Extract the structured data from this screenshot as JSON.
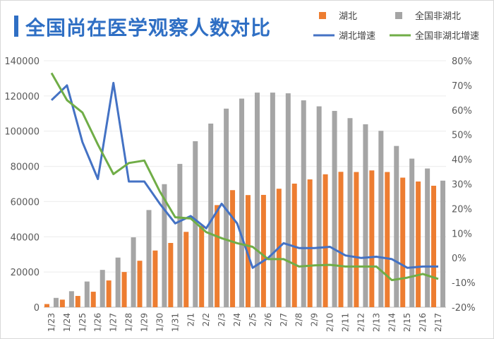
{
  "chart_data": {
    "type": "bar+line",
    "title": "全国尚在医学观察人数对比",
    "categories": [
      "1/23",
      "1/24",
      "1/25",
      "1/26",
      "1/27",
      "1/28",
      "1/29",
      "1/30",
      "1/31",
      "2/1",
      "2/2",
      "2/3",
      "2/4",
      "2/5",
      "2/6",
      "2/7",
      "2/8",
      "2/9",
      "2/10",
      "2/11",
      "2/12",
      "2/13",
      "2/14",
      "2/15",
      "2/16",
      "2/17"
    ],
    "left_axis": {
      "ylim": [
        0,
        140000
      ],
      "ticks": [
        "0",
        "20000",
        "40000",
        "60000",
        "80000",
        "100000",
        "120000",
        "140000"
      ]
    },
    "right_axis": {
      "ylim": [
        -20,
        80
      ],
      "ticks": [
        "-20%",
        "-10%",
        "0%",
        "10%",
        "20%",
        "30%",
        "40%",
        "50%",
        "60%",
        "70%",
        "80%"
      ]
    },
    "series": [
      {
        "name": "湖北",
        "type": "bar",
        "axis": "left",
        "color": "#ed7d31",
        "values": [
          1800,
          4300,
          6400,
          8800,
          15200,
          20000,
          26400,
          32200,
          36500,
          42800,
          46300,
          58000,
          66500,
          63700,
          63800,
          67300,
          70200,
          72600,
          75500,
          76900,
          76800,
          77700,
          76800,
          73600,
          71400,
          69000
        ]
      },
      {
        "name": "全国非湖北",
        "type": "bar",
        "axis": "left",
        "color": "#a5a5a5",
        "values": [
          5300,
          9100,
          14600,
          21200,
          28200,
          39700,
          55200,
          69900,
          81400,
          94300,
          104300,
          112800,
          118500,
          121900,
          121900,
          121500,
          117500,
          114100,
          111500,
          107400,
          103900,
          100200,
          91600,
          84400,
          78800,
          71900
        ]
      },
      {
        "name": "湖北增速",
        "type": "line",
        "axis": "right",
        "color": "#4472c4",
        "values": [
          64,
          70,
          47,
          32,
          71,
          31,
          31,
          22,
          14,
          17,
          12,
          22,
          14,
          -4,
          0,
          6,
          4,
          4,
          4.5,
          1,
          0,
          0.5,
          -0.5,
          -4,
          -3.5,
          -3.5
        ]
      },
      {
        "name": "全国非湖北增速",
        "type": "line",
        "axis": "right",
        "color": "#70ad47",
        "values": [
          75,
          64,
          59,
          46,
          34,
          38.5,
          39.5,
          27,
          16.5,
          16,
          10.5,
          8,
          6,
          4.5,
          -0.5,
          -0.5,
          -3.5,
          -3,
          -2.8,
          -3.5,
          -3.5,
          -3.5,
          -9,
          -8,
          -6.5,
          -8.5
        ]
      }
    ]
  }
}
